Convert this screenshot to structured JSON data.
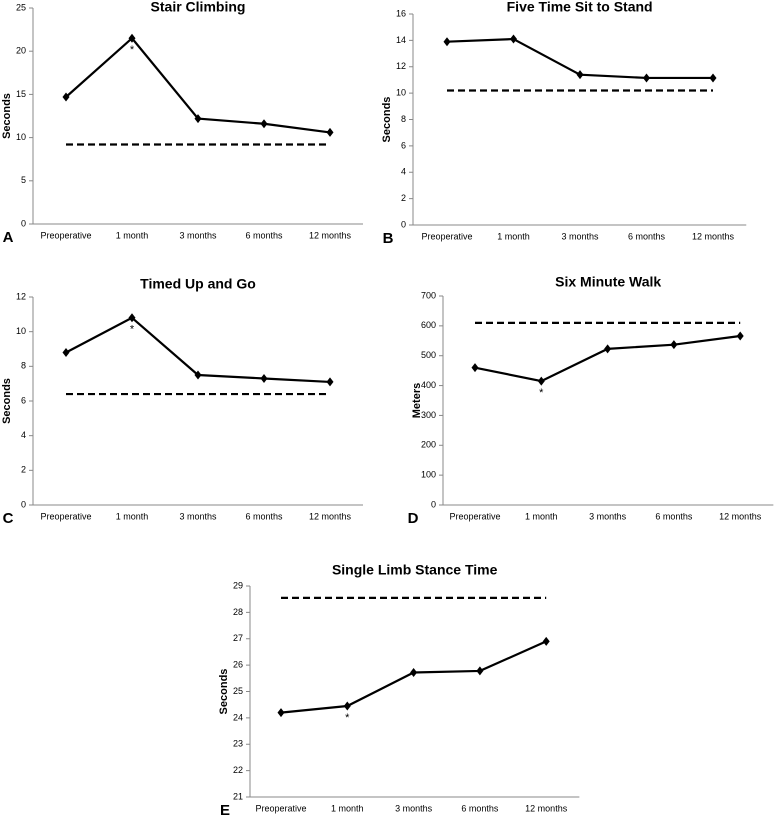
{
  "chart_data": [
    {
      "type": "line",
      "panel": "A",
      "title": "Stair Climbing",
      "y_label": "Seconds",
      "categories": [
        "Preoperative",
        "1 month",
        "3 months",
        "6 months",
        "12 months"
      ],
      "values": [
        14.7,
        21.5,
        12.2,
        11.6,
        10.6
      ],
      "color": "#000000",
      "reference": 9.2,
      "annotations": [
        {
          "text": "*",
          "category": "1 month"
        }
      ],
      "ylim": [
        0,
        25
      ],
      "yticks": [
        0,
        5,
        10,
        15,
        20,
        25
      ]
    },
    {
      "type": "line",
      "panel": "B",
      "title": "Five Time Sit to Stand",
      "y_label": "Seconds",
      "categories": [
        "Preoperative",
        "1 month",
        "3 months",
        "6 months",
        "12 months"
      ],
      "values": [
        13.9,
        14.1,
        11.4,
        11.15,
        11.15
      ],
      "color": "#000000",
      "reference": 10.2,
      "annotations": [],
      "ylim": [
        0,
        16
      ],
      "yticks": [
        0,
        2,
        4,
        6,
        8,
        10,
        12,
        14,
        16
      ]
    },
    {
      "type": "line",
      "panel": "C",
      "title": "Timed Up and Go",
      "y_label": "Seconds",
      "categories": [
        "Preoperative",
        "1 month",
        "3 months",
        "6 months",
        "12 months"
      ],
      "values": [
        8.8,
        10.8,
        7.5,
        7.3,
        7.1
      ],
      "color": "#000000",
      "reference": 6.4,
      "annotations": [
        {
          "text": "*",
          "category": "1 month"
        }
      ],
      "ylim": [
        0,
        12
      ],
      "yticks": [
        0,
        2,
        4,
        6,
        8,
        10,
        12
      ]
    },
    {
      "type": "line",
      "panel": "D",
      "title": "Six Minute Walk",
      "y_label": "Meters",
      "categories": [
        "Preoperative",
        "1 month",
        "3 months",
        "6 months",
        "12 months"
      ],
      "values": [
        460,
        415,
        523,
        537,
        566
      ],
      "color": "#000000",
      "reference": 610,
      "annotations": [
        {
          "text": "*",
          "category": "1 month"
        }
      ],
      "ylim": [
        0,
        700
      ],
      "yticks": [
        0,
        100,
        200,
        300,
        400,
        500,
        600,
        700
      ]
    },
    {
      "type": "line",
      "panel": "E",
      "title": "Single Limb Stance Time",
      "y_label": "Seconds",
      "categories": [
        "Preoperative",
        "1 month",
        "3 months",
        "6 months",
        "12 months"
      ],
      "values": [
        24.2,
        24.45,
        25.72,
        25.78,
        26.9
      ],
      "color": "#000000",
      "reference": 28.55,
      "annotations": [
        {
          "text": "*",
          "category": "1 month"
        }
      ],
      "ylim": [
        21,
        29
      ],
      "yticks": [
        21,
        22,
        23,
        24,
        25,
        26,
        27,
        28,
        29
      ]
    }
  ]
}
